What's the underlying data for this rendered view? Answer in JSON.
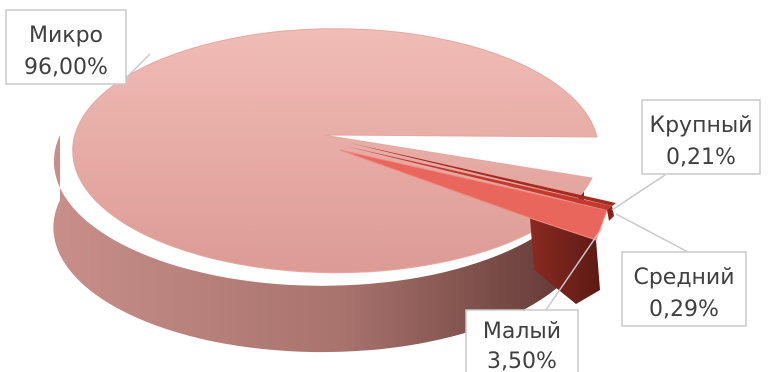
{
  "chart_data": {
    "type": "pie",
    "variant": "3d-exploded",
    "title": "",
    "slices": [
      {
        "label": "Микро",
        "value": 96.0,
        "value_text": "96,00%",
        "color": "#e8a9a3"
      },
      {
        "label": "Малый",
        "value": 3.5,
        "value_text": "3,50%",
        "color": "#e8665c"
      },
      {
        "label": "Средний",
        "value": 0.29,
        "value_text": "0,29%",
        "color": "#c4392e"
      },
      {
        "label": "Крупный",
        "value": 0.21,
        "value_text": "0,21%",
        "color": "#a52a20"
      }
    ],
    "legend": "none",
    "data_labels": "callouts"
  }
}
